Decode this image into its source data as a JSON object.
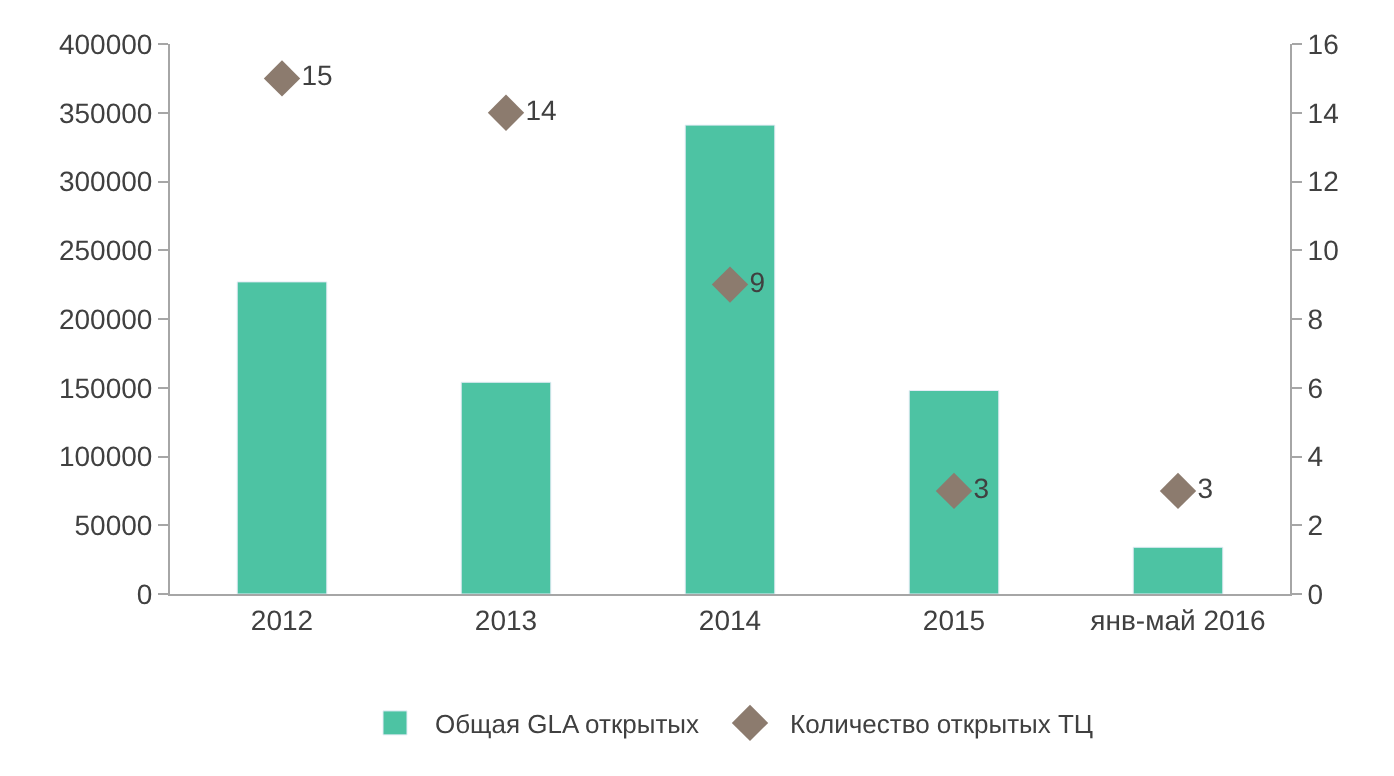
{
  "chart_data": {
    "type": "bar",
    "categories": [
      "2012",
      "2013",
      "2014",
      "2015",
      "янв-май 2016"
    ],
    "series": [
      {
        "name": "Общая GLA открытых",
        "color": "#4dc3a3",
        "values": [
          227000,
          154000,
          341000,
          148000,
          34000
        ]
      },
      {
        "name": "Количество открытых ТЦ",
        "color": "#8c7b6e",
        "type": "scatter",
        "axis": "y2",
        "marker": "diamond",
        "values": [
          15,
          14,
          9,
          3,
          3
        ],
        "value_labels": [
          "15",
          "14",
          "9",
          "3",
          "3"
        ]
      }
    ],
    "ylim": [
      0,
      400000
    ],
    "yticks": [
      0,
      50000,
      100000,
      150000,
      200000,
      250000,
      300000,
      350000,
      400000
    ],
    "y2lim": [
      0,
      16
    ],
    "y2ticks": [
      0,
      2,
      4,
      6,
      8,
      10,
      12,
      14,
      16
    ],
    "legend": "bottom"
  }
}
